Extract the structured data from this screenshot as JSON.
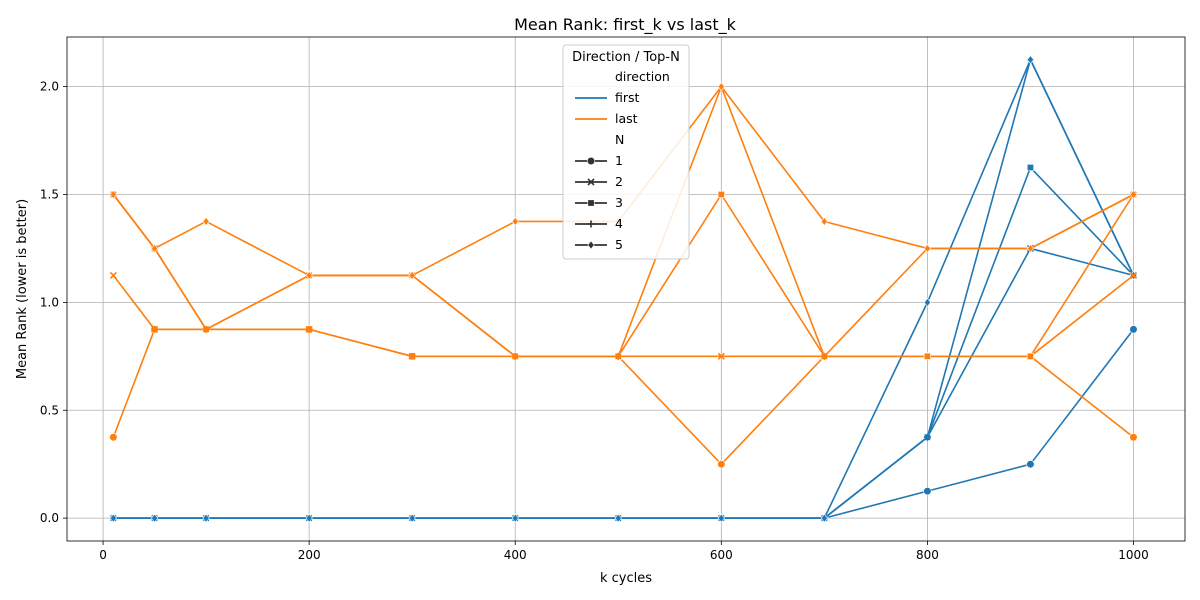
{
  "chart_data": {
    "type": "line",
    "title": "Mean Rank: first_k vs last_k",
    "xlabel": "k cycles",
    "ylabel": "Mean Rank (lower is better)",
    "xlim": [
      -35,
      1050
    ],
    "ylim": [
      -0.106,
      2.23
    ],
    "xticks": [
      0,
      200,
      400,
      600,
      800,
      1000
    ],
    "yticks": [
      0.0,
      0.5,
      1.0,
      1.5,
      2.0
    ],
    "grid": true,
    "x": [
      10,
      50,
      100,
      200,
      300,
      400,
      500,
      600,
      700,
      800,
      900,
      1000
    ],
    "colors": {
      "first": "#1f77b4",
      "last": "#ff7f0e"
    },
    "legend": {
      "title": "Direction / Top-N",
      "placement": "top-center",
      "direction_header": "direction",
      "n_header": "N",
      "directions": [
        "first",
        "last"
      ],
      "n_values": [
        "1",
        "2",
        "3",
        "4",
        "5"
      ]
    },
    "series": [
      {
        "direction": "first",
        "N": "1",
        "marker": "circle",
        "values": [
          0,
          0,
          0,
          0,
          0,
          0,
          0,
          0,
          0,
          0.125,
          0.25,
          0.875
        ]
      },
      {
        "direction": "first",
        "N": "2",
        "marker": "x",
        "values": [
          0,
          0,
          0,
          0,
          0,
          0,
          0,
          0,
          0,
          0.375,
          1.25,
          1.125
        ]
      },
      {
        "direction": "first",
        "N": "3",
        "marker": "square",
        "values": [
          0,
          0,
          0,
          0,
          0,
          0,
          0,
          0,
          0,
          0.375,
          1.625,
          1.125
        ]
      },
      {
        "direction": "first",
        "N": "4",
        "marker": "plus",
        "values": [
          0,
          0,
          0,
          0,
          0,
          0,
          0,
          0,
          0,
          0.375,
          2.125,
          1.125
        ]
      },
      {
        "direction": "first",
        "N": "5",
        "marker": "diamond",
        "values": [
          0,
          0,
          0,
          0,
          0,
          0,
          0,
          0,
          0,
          1.0,
          2.125,
          1.125
        ]
      },
      {
        "direction": "last",
        "N": "1",
        "marker": "circle",
        "values": [
          0.375,
          0.875,
          0.875,
          0.875,
          0.75,
          0.75,
          0.75,
          0.25,
          0.75,
          0.75,
          0.75,
          0.375
        ]
      },
      {
        "direction": "last",
        "N": "2",
        "marker": "x",
        "values": [
          1.125,
          0.875,
          0.875,
          0.875,
          0.75,
          0.75,
          0.75,
          0.75,
          0.75,
          0.75,
          0.75,
          1.125
        ]
      },
      {
        "direction": "last",
        "N": "3",
        "marker": "square",
        "values": [
          1.5,
          1.25,
          0.875,
          1.125,
          1.125,
          0.75,
          0.75,
          1.5,
          0.75,
          0.75,
          0.75,
          1.5
        ]
      },
      {
        "direction": "last",
        "N": "4",
        "marker": "plus",
        "values": [
          1.5,
          1.25,
          0.875,
          1.125,
          1.125,
          0.75,
          0.75,
          2.0,
          0.75,
          1.25,
          1.25,
          1.5
        ]
      },
      {
        "direction": "last",
        "N": "5",
        "marker": "diamond",
        "values": [
          1.5,
          1.25,
          1.375,
          1.125,
          1.125,
          1.375,
          1.375,
          2.0,
          1.375,
          1.25,
          1.25,
          1.5
        ]
      }
    ]
  }
}
